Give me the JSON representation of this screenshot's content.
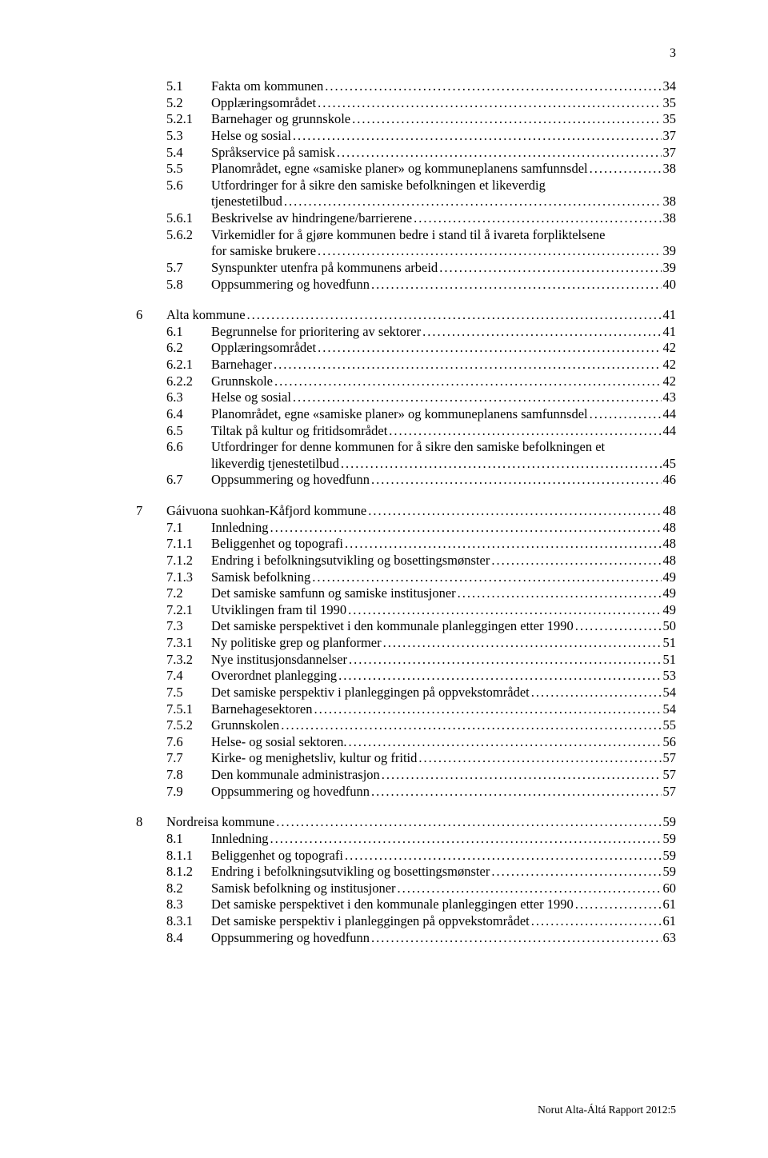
{
  "page_number": "3",
  "footer": "Norut Alta-Áltá Rapport 2012:5",
  "toc": [
    {
      "group": [
        {
          "depth": 1,
          "num": "5.1",
          "label": "Fakta om kommunen",
          "page": "34"
        },
        {
          "depth": 1,
          "num": "5.2",
          "label": "Opplæringsområdet",
          "page": "35"
        },
        {
          "depth": 2,
          "num": "5.2.1",
          "label": "Barnehager og grunnskole",
          "page": "35"
        },
        {
          "depth": 1,
          "num": "5.3",
          "label": "Helse og sosial",
          "page": "37"
        },
        {
          "depth": 1,
          "num": "5.4",
          "label": "Språkservice på samisk",
          "page": "37"
        },
        {
          "depth": 1,
          "num": "5.5",
          "label": "Planområdet, egne «samiske planer» og kommuneplanens samfunnsdel",
          "page": "38"
        },
        {
          "depth": 1,
          "num": "5.6",
          "label": "Utfordringer for å sikre den samiske befolkningen et likeverdig",
          "page": ""
        },
        {
          "depth": "cont",
          "num": "",
          "label": "tjenestetilbud",
          "page": "38"
        },
        {
          "depth": 2,
          "num": "5.6.1",
          "label": "Beskrivelse av hindringene/barrierene",
          "page": "38"
        },
        {
          "depth": 2,
          "num": "5.6.2",
          "label": "Virkemidler for å gjøre kommunen bedre i stand til å ivareta forpliktelsene",
          "page": ""
        },
        {
          "depth": "cont",
          "num": "",
          "label": "for samiske brukere",
          "page": "39"
        },
        {
          "depth": 1,
          "num": "5.7",
          "label": "Synspunkter utenfra på kommunens arbeid",
          "page": "39"
        },
        {
          "depth": 1,
          "num": "5.8",
          "label": "Oppsummering og hovedfunn",
          "page": "40"
        }
      ]
    },
    {
      "group": [
        {
          "depth": 0,
          "num": "6",
          "label": "Alta kommune",
          "page": "41"
        },
        {
          "depth": 1,
          "num": "6.1",
          "label": "Begrunnelse for prioritering av sektorer",
          "page": "41"
        },
        {
          "depth": 1,
          "num": "6.2",
          "label": "Opplæringsområdet",
          "page": "42"
        },
        {
          "depth": 2,
          "num": "6.2.1",
          "label": "Barnehager",
          "page": "42"
        },
        {
          "depth": 2,
          "num": "6.2.2",
          "label": "Grunnskole",
          "page": "42"
        },
        {
          "depth": 1,
          "num": "6.3",
          "label": "Helse og sosial",
          "page": "43"
        },
        {
          "depth": 1,
          "num": "6.4",
          "label": "Planområdet, egne «samiske planer» og kommuneplanens samfunnsdel",
          "page": "44"
        },
        {
          "depth": 1,
          "num": "6.5",
          "label": "Tiltak på kultur og fritidsområdet",
          "page": "44"
        },
        {
          "depth": 1,
          "num": "6.6",
          "label": "Utfordringer for denne kommunen for å sikre den samiske befolkningen et",
          "page": ""
        },
        {
          "depth": "cont",
          "num": "",
          "label": "likeverdig tjenestetilbud",
          "page": "45"
        },
        {
          "depth": 1,
          "num": "6.7",
          "label": "Oppsummering og hovedfunn",
          "page": "46"
        }
      ]
    },
    {
      "group": [
        {
          "depth": 0,
          "num": "7",
          "label": "Gáivuona suohkan-Kåfjord kommune",
          "page": "48"
        },
        {
          "depth": 1,
          "num": "7.1",
          "label": "Innledning",
          "page": "48"
        },
        {
          "depth": 2,
          "num": "7.1.1",
          "label": "Beliggenhet og topografi",
          "page": "48"
        },
        {
          "depth": 2,
          "num": "7.1.2",
          "label": "Endring i befolkningsutvikling og bosettingsmønster",
          "page": "48"
        },
        {
          "depth": 2,
          "num": "7.1.3",
          "label": "Samisk befolkning",
          "page": "49"
        },
        {
          "depth": 1,
          "num": "7.2",
          "label": "Det samiske samfunn og samiske institusjoner",
          "page": "49"
        },
        {
          "depth": 2,
          "num": "7.2.1",
          "label": "Utviklingen fram til 1990",
          "page": "49"
        },
        {
          "depth": 1,
          "num": "7.3",
          "label": "Det samiske perspektivet i den kommunale planleggingen etter 1990",
          "page": "50"
        },
        {
          "depth": 2,
          "num": "7.3.1",
          "label": "Ny politiske grep og planformer",
          "page": "51"
        },
        {
          "depth": 2,
          "num": "7.3.2",
          "label": "Nye institusjonsdannelser",
          "page": "51"
        },
        {
          "depth": 1,
          "num": "7.4",
          "label": "Overordnet planlegging",
          "page": "53"
        },
        {
          "depth": 1,
          "num": "7.5",
          "label": "Det samiske perspektiv i planleggingen på oppvekstområdet",
          "page": "54"
        },
        {
          "depth": 2,
          "num": "7.5.1",
          "label": "Barnehagesektoren",
          "page": "54"
        },
        {
          "depth": 2,
          "num": "7.5.2",
          "label": "Grunnskolen",
          "page": "55"
        },
        {
          "depth": 1,
          "num": "7.6",
          "label": "Helse- og sosial sektoren.",
          "page": "56"
        },
        {
          "depth": 1,
          "num": "7.7",
          "label": "Kirke- og menighetsliv, kultur og fritid",
          "page": "57"
        },
        {
          "depth": 1,
          "num": "7.8",
          "label": "Den kommunale administrasjon",
          "page": "57"
        },
        {
          "depth": 1,
          "num": "7.9",
          "label": "Oppsummering og hovedfunn",
          "page": "57"
        }
      ]
    },
    {
      "group": [
        {
          "depth": 0,
          "num": "8",
          "label": "Nordreisa kommune",
          "page": "59"
        },
        {
          "depth": 1,
          "num": "8.1",
          "label": "Innledning",
          "page": "59"
        },
        {
          "depth": 2,
          "num": "8.1.1",
          "label": "Beliggenhet og topografi",
          "page": "59"
        },
        {
          "depth": 2,
          "num": "8.1.2",
          "label": "Endring i befolkningsutvikling og bosettingsmønster",
          "page": "59"
        },
        {
          "depth": 1,
          "num": "8.2",
          "label": "Samisk befolkning og institusjoner",
          "page": "60"
        },
        {
          "depth": 1,
          "num": "8.3",
          "label": "Det samiske perspektivet i den kommunale planleggingen etter 1990",
          "page": "61"
        },
        {
          "depth": 2,
          "num": "8.3.1",
          "label": "Det samiske perspektiv i planleggingen på oppvekstområdet",
          "page": "61"
        },
        {
          "depth": 1,
          "num": "8.4",
          "label": "Oppsummering og hovedfunn",
          "page": "63"
        }
      ]
    }
  ]
}
